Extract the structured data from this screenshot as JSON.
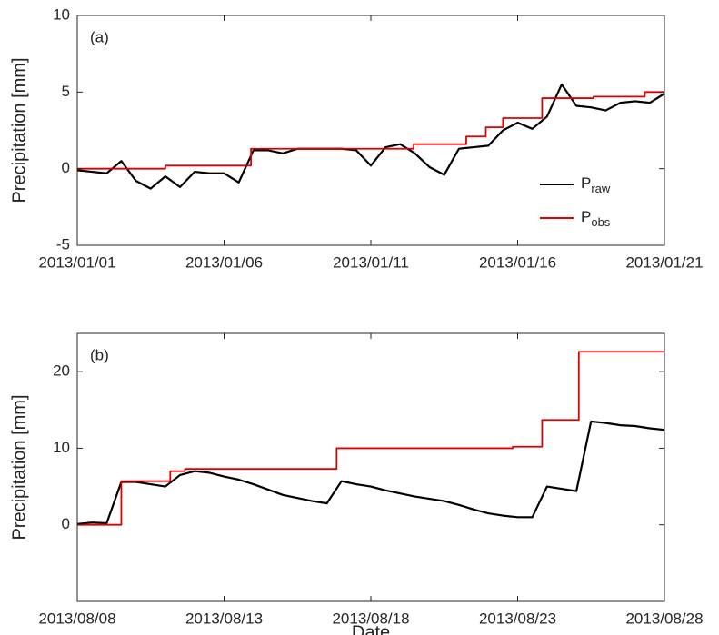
{
  "chart_data": [
    {
      "type": "line",
      "annotation": "(a)",
      "ylabel": "Precipitation [mm]",
      "xlim": [
        "2013/01/01",
        "2013/01/21"
      ],
      "xticks": [
        "2013/01/01",
        "2013/01/06",
        "2013/01/11",
        "2013/01/16",
        "2013/01/21"
      ],
      "ylim": [
        -5,
        10
      ],
      "yticks": [
        -5,
        0,
        5,
        10
      ],
      "legend": "right",
      "series": [
        {
          "name": "P_raw",
          "color": "#000000",
          "x": [
            "2013/01/01 00:00",
            "2013/01/01 12:00",
            "2013/01/02 00:00",
            "2013/01/02 12:00",
            "2013/01/03 00:00",
            "2013/01/03 12:00",
            "2013/01/04 00:00",
            "2013/01/04 12:00",
            "2013/01/05 00:00",
            "2013/01/05 12:00",
            "2013/01/06 00:00",
            "2013/01/06 12:00",
            "2013/01/07 00:00",
            "2013/01/07 12:00",
            "2013/01/08 00:00",
            "2013/01/08 12:00",
            "2013/01/09 00:00",
            "2013/01/09 12:00",
            "2013/01/10 00:00",
            "2013/01/10 12:00",
            "2013/01/11 00:00",
            "2013/01/11 12:00",
            "2013/01/12 00:00",
            "2013/01/12 12:00",
            "2013/01/13 00:00",
            "2013/01/13 12:00",
            "2013/01/14 00:00",
            "2013/01/14 12:00",
            "2013/01/15 00:00",
            "2013/01/15 12:00",
            "2013/01/16 00:00",
            "2013/01/16 12:00",
            "2013/01/17 00:00",
            "2013/01/17 12:00",
            "2013/01/18 00:00",
            "2013/01/18 12:00",
            "2013/01/19 00:00",
            "2013/01/19 12:00",
            "2013/01/20 00:00",
            "2013/01/20 12:00",
            "2013/01/21 00:00"
          ],
          "values": [
            -0.1,
            -0.2,
            -0.3,
            0.5,
            -0.8,
            -1.3,
            -0.5,
            -1.2,
            -0.2,
            -0.3,
            -0.3,
            -0.9,
            1.2,
            1.2,
            1.0,
            1.3,
            1.3,
            1.3,
            1.3,
            1.2,
            0.2,
            1.4,
            1.6,
            1.0,
            0.1,
            -0.4,
            1.3,
            1.4,
            1.5,
            2.5,
            3.0,
            2.6,
            3.4,
            5.5,
            4.1,
            4.0,
            3.8,
            4.3,
            4.4,
            4.3,
            4.9
          ]
        },
        {
          "name": "P_obs",
          "color": "#e00000",
          "x": [
            "2013/01/01 00:00",
            "2013/01/04 00:00",
            "2013/01/04 00:00",
            "2013/01/06 22:00",
            "2013/01/06 22:00",
            "2013/01/12 11:00",
            "2013/01/12 11:00",
            "2013/01/14 06:00",
            "2013/01/14 06:00",
            "2013/01/14 22:00",
            "2013/01/14 22:00",
            "2013/01/15 12:00",
            "2013/01/15 12:00",
            "2013/01/16 20:00",
            "2013/01/16 20:00",
            "2013/01/18 14:00",
            "2013/01/18 14:00",
            "2013/01/20 08:00",
            "2013/01/20 08:00",
            "2013/01/21 00:00"
          ],
          "values": [
            0,
            0,
            0.2,
            0.2,
            1.3,
            1.3,
            1.6,
            1.6,
            2.1,
            2.1,
            2.7,
            2.7,
            3.3,
            3.3,
            4.6,
            4.6,
            4.7,
            4.7,
            5.0,
            5.0
          ]
        }
      ]
    },
    {
      "type": "line",
      "annotation": "(b)",
      "ylabel": "Precipitation [mm]",
      "xlabel": "Date",
      "xlim": [
        "2013/08/08",
        "2013/08/28"
      ],
      "xticks": [
        "2013/08/08",
        "2013/08/13",
        "2013/08/18",
        "2013/08/23",
        "2013/08/28"
      ],
      "ylim": [
        -10,
        25
      ],
      "yticks": [
        0,
        10,
        20
      ],
      "series": [
        {
          "name": "P_raw",
          "color": "#000000",
          "x": [
            "2013/08/08 00:00",
            "2013/08/08 12:00",
            "2013/08/09 00:00",
            "2013/08/09 12:00",
            "2013/08/10 00:00",
            "2013/08/10 12:00",
            "2013/08/11 00:00",
            "2013/08/11 12:00",
            "2013/08/12 00:00",
            "2013/08/12 12:00",
            "2013/08/13 00:00",
            "2013/08/13 12:00",
            "2013/08/14 00:00",
            "2013/08/14 12:00",
            "2013/08/15 00:00",
            "2013/08/15 12:00",
            "2013/08/16 00:00",
            "2013/08/16 12:00",
            "2013/08/17 00:00",
            "2013/08/17 12:00",
            "2013/08/18 00:00",
            "2013/08/18 12:00",
            "2013/08/19 00:00",
            "2013/08/19 12:00",
            "2013/08/20 00:00",
            "2013/08/20 12:00",
            "2013/08/21 00:00",
            "2013/08/21 12:00",
            "2013/08/22 00:00",
            "2013/08/22 12:00",
            "2013/08/23 00:00",
            "2013/08/23 12:00",
            "2013/08/24 00:00",
            "2013/08/24 12:00",
            "2013/08/25 00:00",
            "2013/08/25 12:00",
            "2013/08/26 00:00",
            "2013/08/26 12:00",
            "2013/08/27 00:00",
            "2013/08/27 12:00",
            "2013/08/28 00:00"
          ],
          "values": [
            0.1,
            0.3,
            0.2,
            5.6,
            5.6,
            5.3,
            5.0,
            6.5,
            7.0,
            6.8,
            6.3,
            5.9,
            5.3,
            4.6,
            3.9,
            3.5,
            3.1,
            2.8,
            5.7,
            5.3,
            5.0,
            4.5,
            4.1,
            3.7,
            3.4,
            3.1,
            2.6,
            2.0,
            1.5,
            1.2,
            1.0,
            1.0,
            5.0,
            4.7,
            4.4,
            13.5,
            13.3,
            13.0,
            12.9,
            12.6,
            12.4
          ]
        },
        {
          "name": "P_obs",
          "color": "#e00000",
          "x": [
            "2013/08/08 00:00",
            "2013/08/09 12:00",
            "2013/08/09 12:00",
            "2013/08/11 04:00",
            "2013/08/11 04:00",
            "2013/08/11 16:00",
            "2013/08/11 16:00",
            "2013/08/16 20:00",
            "2013/08/16 20:00",
            "2013/08/22 20:00",
            "2013/08/22 20:00",
            "2013/08/23 20:00",
            "2013/08/23 20:00",
            "2013/08/25 02:00",
            "2013/08/25 02:00",
            "2013/08/28 00:00"
          ],
          "values": [
            0,
            0,
            5.7,
            5.7,
            7.0,
            7.0,
            7.3,
            7.3,
            10.0,
            10.0,
            10.2,
            10.2,
            13.7,
            13.7,
            22.6,
            22.6
          ]
        }
      ]
    }
  ]
}
